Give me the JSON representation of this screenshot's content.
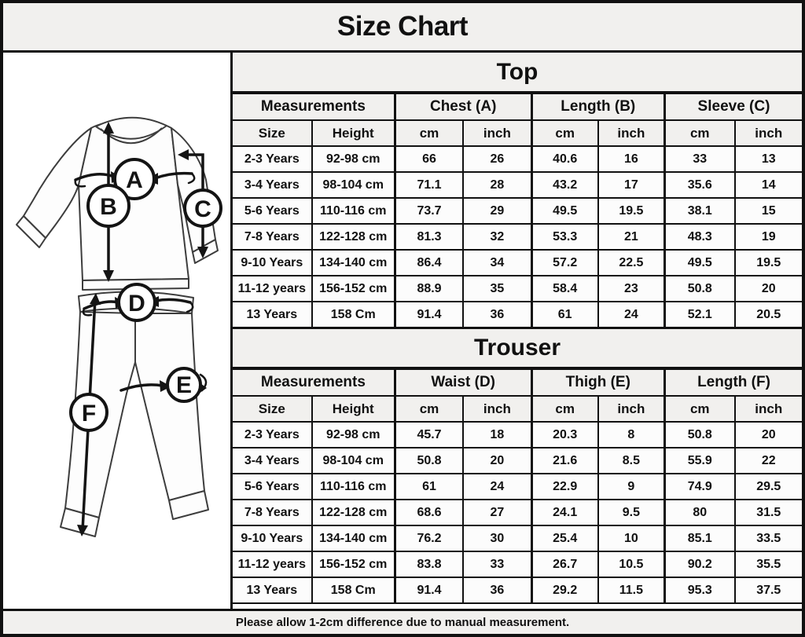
{
  "title": "Size Chart",
  "footer": "Please allow 1-2cm difference due to manual measurement.",
  "colors": {
    "border": "#111111",
    "header_bg": "#f1f0ee",
    "cell_bg": "#fcfcfc",
    "text": "#111111"
  },
  "diagram": {
    "description": "line drawing of pajama top and trousers with measurement markers",
    "labels": [
      "A",
      "B",
      "C",
      "D",
      "E",
      "F"
    ]
  },
  "chart_data": [
    {
      "type": "table",
      "section": "Top",
      "groups": [
        "Measurements",
        "Chest (A)",
        "Length (B)",
        "Sleeve (C)"
      ],
      "subheaders": [
        "Size",
        "Height",
        "cm",
        "inch",
        "cm",
        "inch",
        "cm",
        "inch"
      ],
      "rows": [
        [
          "2-3 Years",
          "92-98 cm",
          "66",
          "26",
          "40.6",
          "16",
          "33",
          "13"
        ],
        [
          "3-4 Years",
          "98-104 cm",
          "71.1",
          "28",
          "43.2",
          "17",
          "35.6",
          "14"
        ],
        [
          "5-6 Years",
          "110-116 cm",
          "73.7",
          "29",
          "49.5",
          "19.5",
          "38.1",
          "15"
        ],
        [
          "7-8 Years",
          "122-128 cm",
          "81.3",
          "32",
          "53.3",
          "21",
          "48.3",
          "19"
        ],
        [
          "9-10 Years",
          "134-140 cm",
          "86.4",
          "34",
          "57.2",
          "22.5",
          "49.5",
          "19.5"
        ],
        [
          "11-12 years",
          "156-152 cm",
          "88.9",
          "35",
          "58.4",
          "23",
          "50.8",
          "20"
        ],
        [
          "13 Years",
          "158 Cm",
          "91.4",
          "36",
          "61",
          "24",
          "52.1",
          "20.5"
        ]
      ]
    },
    {
      "type": "table",
      "section": "Trouser",
      "groups": [
        "Measurements",
        "Waist (D)",
        "Thigh (E)",
        "Length (F)"
      ],
      "subheaders": [
        "Size",
        "Height",
        "cm",
        "inch",
        "cm",
        "inch",
        "cm",
        "inch"
      ],
      "rows": [
        [
          "2-3 Years",
          "92-98 cm",
          "45.7",
          "18",
          "20.3",
          "8",
          "50.8",
          "20"
        ],
        [
          "3-4 Years",
          "98-104 cm",
          "50.8",
          "20",
          "21.6",
          "8.5",
          "55.9",
          "22"
        ],
        [
          "5-6 Years",
          "110-116 cm",
          "61",
          "24",
          "22.9",
          "9",
          "74.9",
          "29.5"
        ],
        [
          "7-8 Years",
          "122-128 cm",
          "68.6",
          "27",
          "24.1",
          "9.5",
          "80",
          "31.5"
        ],
        [
          "9-10 Years",
          "134-140 cm",
          "76.2",
          "30",
          "25.4",
          "10",
          "85.1",
          "33.5"
        ],
        [
          "11-12 years",
          "156-152 cm",
          "83.8",
          "33",
          "26.7",
          "10.5",
          "90.2",
          "35.5"
        ],
        [
          "13 Years",
          "158 Cm",
          "91.4",
          "36",
          "29.2",
          "11.5",
          "95.3",
          "37.5"
        ]
      ]
    }
  ]
}
